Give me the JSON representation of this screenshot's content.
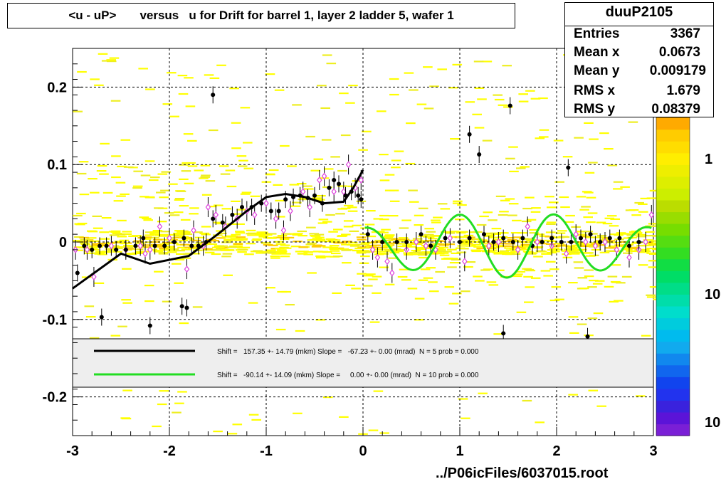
{
  "chart_data": {
    "type": "scatter",
    "title": "<u - uP>       versus   u for Drift for barrel 1, layer 2 ladder 5, wafer 1",
    "xlim": [
      -3,
      3
    ],
    "ylim": [
      -0.25,
      0.25
    ],
    "x_ticks": [
      "-3",
      "-2",
      "-1",
      "0",
      "1",
      "2",
      "3"
    ],
    "y_ticks": [
      "0.2",
      "0.1",
      "0",
      "-0.1",
      "-0.2"
    ],
    "z_ticks": [
      "1",
      "10",
      "10"
    ],
    "grid": true,
    "stats": {
      "name": "duuP2105",
      "rows": [
        {
          "label": "Entries",
          "value": "3367"
        },
        {
          "label": "Mean x",
          "value": "0.0673"
        },
        {
          "label": "Mean y",
          "value": "0.009179"
        },
        {
          "label": "RMS x",
          "value": "1.679"
        },
        {
          "label": "RMS y",
          "value": "0.08379"
        }
      ]
    },
    "legend": [
      {
        "color": "#000000",
        "text": "Shift =   157.35 +- 14.79 (mkm) Slope =   -67.23 +- 0.00 (mrad)  N = 5 prob = 0.000"
      },
      {
        "color": "#22dd22",
        "text": "Shift =   -90.14 +- 14.09 (mkm) Slope =     0.00 +- 0.00 (mrad)  N = 10 prob = 0.000"
      }
    ],
    "black_profile": [
      [
        -2.95,
        -0.04
      ],
      [
        -2.88,
        -0.005
      ],
      [
        -2.8,
        -0.01
      ],
      [
        -2.72,
        -0.005
      ],
      [
        -2.65,
        -0.005
      ],
      [
        -2.55,
        -0.01
      ],
      [
        -2.45,
        -0.01
      ],
      [
        -2.35,
        -0.005
      ],
      [
        -2.27,
        0.005
      ],
      [
        -2.15,
        -0.005
      ],
      [
        -2.05,
        -0.005
      ],
      [
        -1.95,
        0.0
      ],
      [
        -1.85,
        0.005
      ],
      [
        -1.77,
        -0.005
      ],
      [
        -1.7,
        -0.005
      ],
      [
        -1.62,
        0.0
      ],
      [
        -1.55,
        0.03
      ],
      [
        -1.45,
        0.025
      ],
      [
        -1.35,
        0.035
      ],
      [
        -1.25,
        0.045
      ],
      [
        -1.15,
        0.045
      ],
      [
        -1.05,
        0.05
      ],
      [
        -0.95,
        0.04
      ],
      [
        -0.87,
        0.04
      ],
      [
        -0.8,
        0.055
      ],
      [
        -0.72,
        0.058
      ],
      [
        -0.65,
        0.06
      ],
      [
        -0.57,
        0.057
      ],
      [
        -0.5,
        0.06
      ],
      [
        -0.42,
        0.05
      ],
      [
        -0.35,
        0.07
      ],
      [
        -0.3,
        0.08
      ],
      [
        -0.25,
        0.075
      ],
      [
        -0.18,
        0.06
      ],
      [
        -0.12,
        0.065
      ],
      [
        -0.05,
        0.06
      ],
      [
        -0.02,
        0.055
      ],
      [
        0.05,
        0.01
      ],
      [
        0.2,
        0.0
      ],
      [
        0.35,
        0.0
      ],
      [
        0.45,
        0.0
      ],
      [
        0.6,
        0.01
      ],
      [
        0.7,
        -0.005
      ],
      [
        0.85,
        0.005
      ],
      [
        1.0,
        0.0
      ],
      [
        1.1,
        0.005
      ],
      [
        1.25,
        0.01
      ],
      [
        1.35,
        0.0
      ],
      [
        1.45,
        0.005
      ],
      [
        1.55,
        0.0
      ],
      [
        1.65,
        0.005
      ],
      [
        1.75,
        -0.005
      ],
      [
        1.85,
        0.0
      ],
      [
        1.95,
        0.005
      ],
      [
        2.05,
        0.0
      ],
      [
        2.15,
        0.0
      ],
      [
        2.25,
        0.005
      ],
      [
        2.35,
        0.01
      ],
      [
        2.45,
        0.0
      ],
      [
        2.55,
        0.005
      ],
      [
        2.65,
        0.005
      ],
      [
        2.75,
        -0.005
      ],
      [
        2.85,
        0.0
      ]
    ],
    "black_outliers": [
      [
        -1.55,
        0.19
      ],
      [
        -2.7,
        -0.097
      ],
      [
        -2.2,
        -0.108
      ],
      [
        -1.87,
        -0.083
      ],
      [
        -1.82,
        -0.085
      ],
      [
        1.1,
        0.139
      ],
      [
        1.2,
        0.113
      ],
      [
        1.52,
        0.176
      ],
      [
        2.12,
        0.096
      ],
      [
        1.45,
        -0.118
      ],
      [
        2.32,
        -0.122
      ]
    ],
    "magenta_profile": [
      [
        -2.97,
        -0.01
      ],
      [
        -2.85,
        -0.01
      ],
      [
        -2.78,
        -0.045
      ],
      [
        -2.6,
        -0.005
      ],
      [
        -2.45,
        -0.01
      ],
      [
        -2.3,
        -0.005
      ],
      [
        -2.25,
        -0.015
      ],
      [
        -2.2,
        -0.01
      ],
      [
        -2.1,
        0.02
      ],
      [
        -2.0,
        0.005
      ],
      [
        -1.82,
        -0.035
      ],
      [
        -1.75,
        0.015
      ],
      [
        -1.65,
        -0.005
      ],
      [
        -1.6,
        0.045
      ],
      [
        -1.52,
        0.035
      ],
      [
        -1.42,
        0.02
      ],
      [
        -1.3,
        0.03
      ],
      [
        -1.2,
        0.04
      ],
      [
        -1.12,
        0.035
      ],
      [
        -1.0,
        0.05
      ],
      [
        -0.9,
        0.03
      ],
      [
        -0.82,
        0.015
      ],
      [
        -0.75,
        0.04
      ],
      [
        -0.62,
        0.065
      ],
      [
        -0.55,
        0.045
      ],
      [
        -0.45,
        0.08
      ],
      [
        -0.4,
        0.085
      ],
      [
        -0.3,
        0.065
      ],
      [
        -0.2,
        0.065
      ],
      [
        -0.15,
        0.1
      ],
      [
        -0.08,
        0.07
      ],
      [
        -0.02,
        0.08
      ],
      [
        0.1,
        -0.01
      ],
      [
        0.15,
        -0.02
      ],
      [
        0.25,
        -0.025
      ],
      [
        0.3,
        -0.04
      ],
      [
        0.45,
        -0.01
      ],
      [
        0.55,
        0.0
      ],
      [
        0.65,
        -0.005
      ],
      [
        0.75,
        -0.01
      ],
      [
        0.9,
        0.005
      ],
      [
        1.05,
        -0.025
      ],
      [
        1.3,
        -0.005
      ],
      [
        1.4,
        0.0
      ],
      [
        1.6,
        -0.01
      ],
      [
        1.7,
        0.02
      ],
      [
        1.8,
        0.0
      ],
      [
        1.95,
        -0.005
      ],
      [
        2.1,
        -0.015
      ],
      [
        2.2,
        0.01
      ],
      [
        2.3,
        0.0
      ],
      [
        2.4,
        -0.005
      ],
      [
        2.5,
        0.0
      ],
      [
        2.62,
        -0.01
      ],
      [
        2.75,
        -0.02
      ],
      [
        2.85,
        -0.01
      ],
      [
        2.92,
        0.0
      ],
      [
        2.98,
        0.035
      ]
    ]
  },
  "footer": "../P06icFiles/6037015.root"
}
